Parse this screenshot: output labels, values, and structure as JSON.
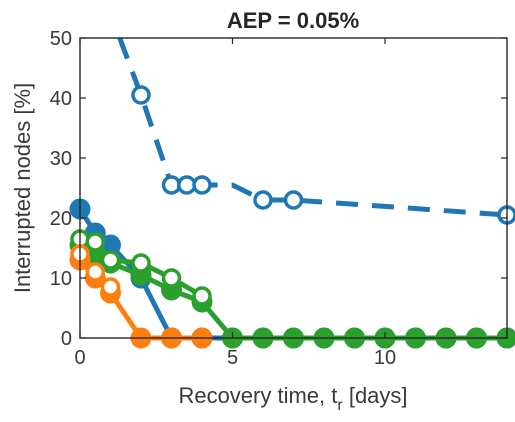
{
  "chart_data": {
    "type": "line",
    "title": "AEP = 0.05%",
    "xlabel": "Recovery time, t",
    "xlabel_sub": "r",
    "xlabel_suffix": " [days]",
    "ylabel": "Interrupted nodes [%]",
    "xlim": [
      0,
      14
    ],
    "ylim": [
      0,
      50
    ],
    "xticks": [
      0,
      5,
      10
    ],
    "yticks": [
      0,
      10,
      20,
      30,
      40,
      50
    ],
    "grid": false,
    "legend": "none",
    "series": [
      {
        "color": "#1f77b4",
        "style": "dashed",
        "marker": "open-circle",
        "x": [
          1.3,
          2,
          3,
          3.5,
          4,
          5,
          6,
          7,
          14
        ],
        "y": [
          50,
          40.5,
          25.5,
          25.5,
          25.5,
          25.5,
          23,
          23,
          20.5
        ],
        "marker_x": [
          2,
          3,
          3.5,
          4,
          6,
          7,
          14
        ],
        "marker_y": [
          40.5,
          25.5,
          25.5,
          25.5,
          23,
          23,
          20.5
        ]
      },
      {
        "color": "#1f77b4",
        "style": "solid",
        "marker": "filled-circle",
        "x": [
          0,
          0.5,
          1,
          2,
          3,
          4,
          5,
          6,
          7,
          8,
          9,
          10,
          11,
          12,
          13,
          14
        ],
        "y": [
          21.5,
          17.5,
          15.5,
          10,
          0,
          0,
          0,
          0,
          0,
          0,
          0,
          0,
          0,
          0,
          0,
          0
        ]
      },
      {
        "color": "#2ca02c",
        "style": "solid",
        "marker": "open-circle",
        "x": [
          0,
          0.5,
          1,
          2,
          3,
          4
        ],
        "y": [
          16.5,
          16,
          13,
          12.5,
          10,
          7
        ]
      },
      {
        "color": "#2ca02c",
        "style": "solid",
        "marker": "filled-circle",
        "x": [
          0,
          0.5,
          1,
          2,
          3,
          4,
          5,
          6,
          7,
          8,
          9,
          10,
          11,
          12,
          13,
          14
        ],
        "y": [
          15.5,
          14,
          12.5,
          10.5,
          8,
          6,
          0,
          0,
          0,
          0,
          0,
          0,
          0,
          0,
          0,
          0
        ]
      },
      {
        "color": "#ff7f0e",
        "style": "solid",
        "marker": "open-circle",
        "x": [
          0,
          0.5,
          1
        ],
        "y": [
          14,
          11,
          8.5
        ]
      },
      {
        "color": "#ff7f0e",
        "style": "solid",
        "marker": "filled-circle",
        "x": [
          0,
          0.5,
          1,
          2,
          3,
          4
        ],
        "y": [
          13,
          10,
          7.5,
          0,
          0,
          0
        ]
      }
    ]
  }
}
